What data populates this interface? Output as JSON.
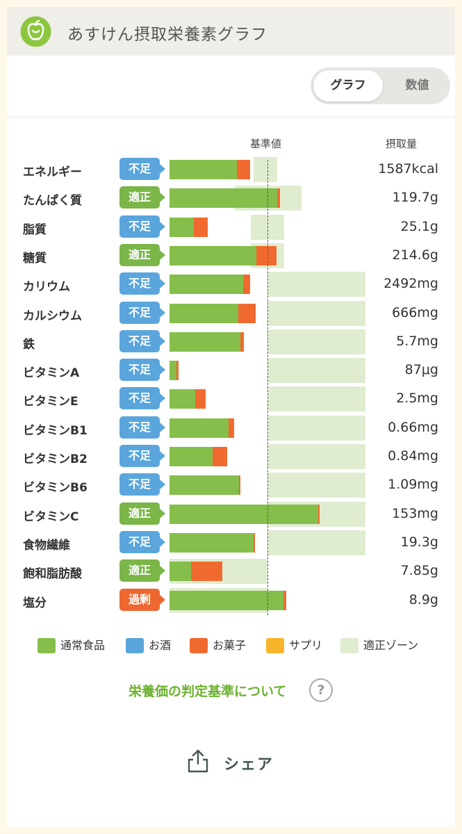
{
  "app": {
    "title": "あすけん摂取栄養素グラフ",
    "logo_icon": "apple-icon"
  },
  "toggle": {
    "graph_label": "グラフ",
    "numeric_label": "数値",
    "selected": "graph"
  },
  "columns": {
    "reference": "基準値",
    "intake": "摂取量"
  },
  "status_colors": {
    "不足": "#5aa6dc",
    "適正": "#7ab648",
    "過剰": "#ef6730"
  },
  "rows": [
    {
      "name": "エネルギー",
      "status": "不足",
      "value": "1587kcal",
      "food": 0.69,
      "snack": 0.13,
      "zone": [
        0.86,
        1.1
      ]
    },
    {
      "name": "たんぱく質",
      "status": "適正",
      "value": "119.7g",
      "food": 1.1,
      "snack": 0.03,
      "zone": [
        0.67,
        1.35
      ]
    },
    {
      "name": "脂質",
      "status": "不足",
      "value": "25.1g",
      "food": 0.25,
      "snack": 0.14,
      "zone": [
        0.83,
        1.17
      ]
    },
    {
      "name": "糖質",
      "status": "適正",
      "value": "214.6g",
      "food": 0.89,
      "snack": 0.2,
      "zone": [
        0.83,
        1.17
      ]
    },
    {
      "name": "カリウム",
      "status": "不足",
      "value": "2492mg",
      "food": 0.75,
      "snack": 0.07,
      "zone": [
        1.0,
        2.0
      ]
    },
    {
      "name": "カルシウム",
      "status": "不足",
      "value": "666mg",
      "food": 0.7,
      "snack": 0.18,
      "zone": [
        1.0,
        2.0
      ]
    },
    {
      "name": "鉄",
      "status": "不足",
      "value": "5.7mg",
      "food": 0.72,
      "snack": 0.04,
      "zone": [
        1.0,
        2.0
      ]
    },
    {
      "name": "ビタミンA",
      "status": "不足",
      "value": "87μg",
      "food": 0.07,
      "snack": 0.02,
      "zone": [
        1.0,
        2.0
      ]
    },
    {
      "name": "ビタミンE",
      "status": "不足",
      "value": "2.5mg",
      "food": 0.26,
      "snack": 0.11,
      "zone": [
        1.0,
        2.0
      ]
    },
    {
      "name": "ビタミンB1",
      "status": "不足",
      "value": "0.66mg",
      "food": 0.6,
      "snack": 0.06,
      "zone": [
        1.0,
        2.0
      ]
    },
    {
      "name": "ビタミンB2",
      "status": "不足",
      "value": "0.84mg",
      "food": 0.44,
      "snack": 0.15,
      "zone": [
        1.0,
        2.0
      ]
    },
    {
      "name": "ビタミンB6",
      "status": "不足",
      "value": "1.09mg",
      "food": 0.71,
      "snack": 0.01,
      "zone": [
        1.0,
        2.0
      ]
    },
    {
      "name": "ビタミンC",
      "status": "適正",
      "value": "153mg",
      "food": 1.52,
      "snack": 0.01,
      "zone": [
        1.0,
        2.0
      ]
    },
    {
      "name": "食物繊維",
      "status": "不足",
      "value": "19.3g",
      "food": 0.86,
      "snack": 0.01,
      "zone": [
        1.0,
        2.0
      ]
    },
    {
      "name": "飽和脂肪酸",
      "status": "適正",
      "value": "7.85g",
      "food": 0.22,
      "snack": 0.32,
      "zone": [
        0.0,
        1.0
      ]
    },
    {
      "name": "塩分",
      "status": "過剰",
      "value": "8.9g",
      "food": 1.16,
      "snack": 0.03,
      "zone": [
        0.0,
        1.0
      ]
    }
  ],
  "legend": [
    {
      "label": "通常食品",
      "color": "#86be4b"
    },
    {
      "label": "お酒",
      "color": "#5aa6dc"
    },
    {
      "label": "お菓子",
      "color": "#f06a2f"
    },
    {
      "label": "サプリ",
      "color": "#f7b52c"
    },
    {
      "label": "適正ゾーン",
      "color": "#dfecd0"
    }
  ],
  "info_link": "栄養価の判定基準について",
  "info_icon": "?",
  "share": {
    "label": "シェア",
    "icon": "share-icon"
  }
}
